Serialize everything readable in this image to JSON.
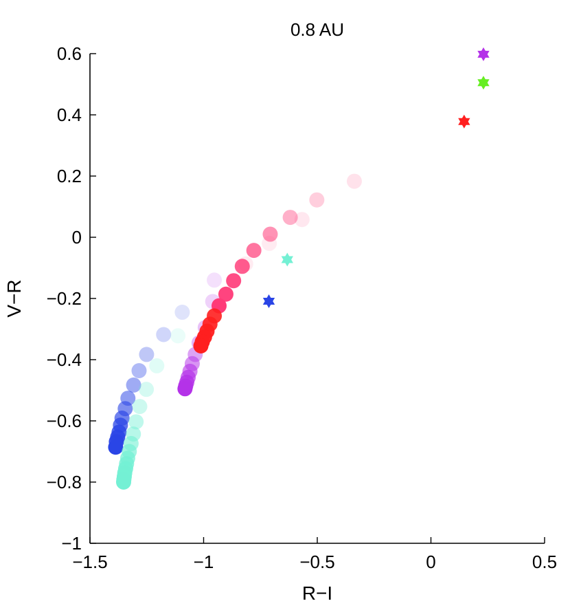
{
  "chart_data": {
    "type": "scatter",
    "title": "0.8 AU",
    "xlabel": "R−I",
    "ylabel": "V−R",
    "xlim": [
      -1.5,
      0.5
    ],
    "ylim": [
      -1,
      0.6
    ],
    "x_ticks": [
      -1.5,
      -1,
      -0.5,
      0,
      0.5
    ],
    "x_tick_labels": [
      "−1.5",
      "−1",
      "−0.5",
      "0",
      "0.5"
    ],
    "y_ticks": [
      -1,
      -0.8,
      -0.6,
      -0.4,
      -0.2,
      0,
      0.2,
      0.4,
      0.6
    ],
    "y_tick_labels": [
      "−1",
      "−0.8",
      "−0.6",
      "−0.4",
      "−0.2",
      "0",
      "0.2",
      "0.4",
      "0.6"
    ],
    "grid": false,
    "series": [
      {
        "marker": "circle",
        "color": "#2a45e6",
        "points": [
          {
            "x": -1.094,
            "y": -0.245,
            "opacity": 0.15
          },
          {
            "x": -1.176,
            "y": -0.318,
            "opacity": 0.22
          },
          {
            "x": -1.251,
            "y": -0.383,
            "opacity": 0.3
          },
          {
            "x": -1.284,
            "y": -0.436,
            "opacity": 0.37
          },
          {
            "x": -1.308,
            "y": -0.483,
            "opacity": 0.45
          },
          {
            "x": -1.333,
            "y": -0.526,
            "opacity": 0.52
          },
          {
            "x": -1.345,
            "y": -0.56,
            "opacity": 0.6
          },
          {
            "x": -1.359,
            "y": -0.591,
            "opacity": 0.67
          },
          {
            "x": -1.366,
            "y": -0.614,
            "opacity": 0.75
          },
          {
            "x": -1.372,
            "y": -0.637,
            "opacity": 0.82
          },
          {
            "x": -1.378,
            "y": -0.653,
            "opacity": 0.89
          },
          {
            "x": -1.384,
            "y": -0.668,
            "opacity": 0.95
          },
          {
            "x": -1.387,
            "y": -0.686,
            "opacity": 1.0
          }
        ]
      },
      {
        "marker": "circle",
        "color": "#74f0d4",
        "points": [
          {
            "x": -1.113,
            "y": -0.322,
            "opacity": 0.15
          },
          {
            "x": -1.206,
            "y": -0.42,
            "opacity": 0.22
          },
          {
            "x": -1.252,
            "y": -0.497,
            "opacity": 0.3
          },
          {
            "x": -1.281,
            "y": -0.553,
            "opacity": 0.37
          },
          {
            "x": -1.297,
            "y": -0.603,
            "opacity": 0.45
          },
          {
            "x": -1.309,
            "y": -0.643,
            "opacity": 0.52
          },
          {
            "x": -1.319,
            "y": -0.674,
            "opacity": 0.6
          },
          {
            "x": -1.327,
            "y": -0.7,
            "opacity": 0.67
          },
          {
            "x": -1.334,
            "y": -0.722,
            "opacity": 0.75
          },
          {
            "x": -1.339,
            "y": -0.74,
            "opacity": 0.82
          },
          {
            "x": -1.343,
            "y": -0.756,
            "opacity": 0.89
          },
          {
            "x": -1.347,
            "y": -0.77,
            "opacity": 0.92
          },
          {
            "x": -1.349,
            "y": -0.782,
            "opacity": 0.95
          },
          {
            "x": -1.351,
            "y": -0.792,
            "opacity": 0.98
          },
          {
            "x": -1.352,
            "y": -0.8,
            "opacity": 1.0
          }
        ]
      },
      {
        "marker": "circle",
        "color": "#b432e8",
        "points": [
          {
            "x": -0.953,
            "y": -0.14,
            "opacity": 0.15
          },
          {
            "x": -0.96,
            "y": -0.21,
            "opacity": 0.22
          },
          {
            "x": -0.993,
            "y": -0.295,
            "opacity": 0.3
          },
          {
            "x": -1.02,
            "y": -0.345,
            "opacity": 0.37
          },
          {
            "x": -1.037,
            "y": -0.383,
            "opacity": 0.45
          },
          {
            "x": -1.05,
            "y": -0.413,
            "opacity": 0.52
          },
          {
            "x": -1.06,
            "y": -0.438,
            "opacity": 0.6
          },
          {
            "x": -1.068,
            "y": -0.458,
            "opacity": 0.7
          },
          {
            "x": -1.074,
            "y": -0.474,
            "opacity": 0.8
          },
          {
            "x": -1.079,
            "y": -0.486,
            "opacity": 0.9
          },
          {
            "x": -1.082,
            "y": -0.495,
            "opacity": 1.0
          }
        ]
      },
      {
        "marker": "circle",
        "color": "#ff3a78",
        "points": [
          {
            "x": -0.337,
            "y": 0.183,
            "opacity": 0.15
          },
          {
            "x": -0.502,
            "y": 0.122,
            "opacity": 0.25
          },
          {
            "x": -0.619,
            "y": 0.065,
            "opacity": 0.4
          },
          {
            "x": -0.707,
            "y": 0.01,
            "opacity": 0.55
          },
          {
            "x": -0.779,
            "y": -0.043,
            "opacity": 0.7
          },
          {
            "x": -0.83,
            "y": -0.095,
            "opacity": 0.82
          },
          {
            "x": -0.868,
            "y": -0.142,
            "opacity": 0.9
          },
          {
            "x": -0.902,
            "y": -0.186,
            "opacity": 0.95
          },
          {
            "x": -0.932,
            "y": -0.224,
            "opacity": 1.0
          }
        ]
      },
      {
        "marker": "circle",
        "color": "#ff3a78",
        "points": [
          {
            "x": -0.567,
            "y": 0.058,
            "opacity": 0.12
          },
          {
            "x": -0.711,
            "y": -0.02,
            "opacity": 0.1
          },
          {
            "x": -0.815,
            "y": -0.087,
            "opacity": 0.1
          }
        ]
      },
      {
        "marker": "circle",
        "color": "#ff1f1f",
        "points": [
          {
            "x": -0.953,
            "y": -0.257,
            "opacity": 0.9
          },
          {
            "x": -0.972,
            "y": -0.284,
            "opacity": 0.92
          },
          {
            "x": -0.985,
            "y": -0.307,
            "opacity": 0.95
          },
          {
            "x": -0.996,
            "y": -0.326,
            "opacity": 0.97
          },
          {
            "x": -1.006,
            "y": -0.342,
            "opacity": 1.0
          },
          {
            "x": -1.012,
            "y": -0.355,
            "opacity": 1.0
          }
        ]
      },
      {
        "marker": "star",
        "points": [
          {
            "x": 0.231,
            "y": 0.598,
            "color": "#b432e8"
          },
          {
            "x": 0.231,
            "y": 0.505,
            "color": "#66ee22"
          },
          {
            "x": 0.146,
            "y": 0.378,
            "color": "#ff1f1f"
          },
          {
            "x": -0.632,
            "y": -0.073,
            "color": "#74f0d4"
          },
          {
            "x": -0.713,
            "y": -0.209,
            "color": "#2a45e6"
          }
        ]
      }
    ]
  }
}
